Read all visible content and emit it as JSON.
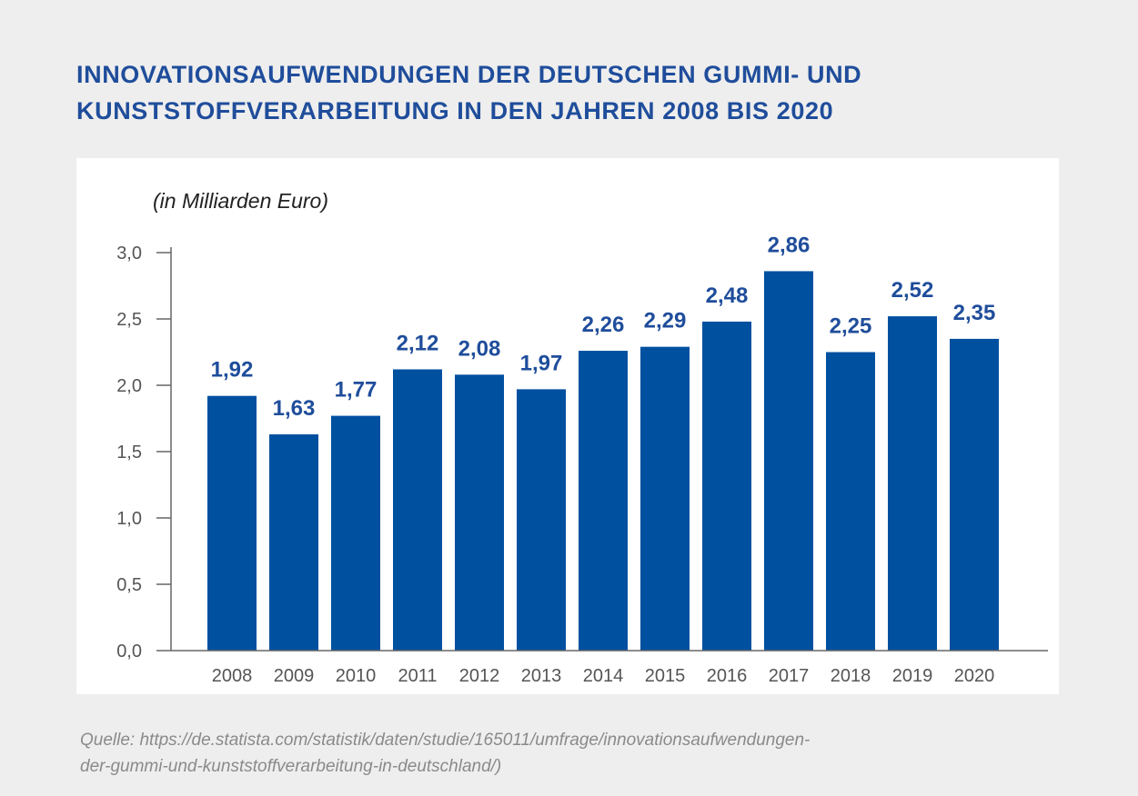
{
  "title_lines": [
    "INNOVATIONSAUFWENDUNGEN DER DEUTSCHEN GUMMI- UND",
    "KUNSTSTOFFVERARBEITUNG IN DEN JAHREN 2008 BIS 2020"
  ],
  "source_lines": [
    "Quelle: https://de.statista.com/statistik/daten/studie/165011/umfrage/innovationsaufwendungen-",
    "der-gummi-und-kunststoffverarbeitung-in-deutschland/)"
  ],
  "chart_data": {
    "type": "bar",
    "title": "INNOVATIONSAUFWENDUNGEN DER DEUTSCHEN GUMMI- UND KUNSTSTOFFVERARBEITUNG IN DEN JAHREN 2008 BIS 2020",
    "unit_label": "(in Milliarden Euro)",
    "xlabel": "",
    "ylabel": "",
    "categories": [
      "2008",
      "2009",
      "2010",
      "2011",
      "2012",
      "2013",
      "2014",
      "2015",
      "2016",
      "2017",
      "2018",
      "2019",
      "2020"
    ],
    "values": [
      1.92,
      1.63,
      1.77,
      2.12,
      2.08,
      1.97,
      2.26,
      2.29,
      2.48,
      2.86,
      2.25,
      2.52,
      2.35
    ],
    "value_labels": [
      "1,92",
      "1,63",
      "1,77",
      "2,12",
      "2,08",
      "1,97",
      "2,26",
      "2,29",
      "2,48",
      "2,86",
      "2,25",
      "2,52",
      "2,35"
    ],
    "yticks": [
      0,
      0.5,
      1.0,
      1.5,
      2.0,
      2.5,
      3.0
    ],
    "ytick_labels": [
      "0,0",
      "0,5",
      "1,0",
      "1,5",
      "2,0",
      "2,5",
      "3,0"
    ],
    "ylim": [
      0,
      3.0
    ],
    "grid": false,
    "legend": "none",
    "colors": {
      "bar": "#0050a0",
      "value_label": "#1f4d9b",
      "axis": "#666666",
      "tick_label": "#555555",
      "title": "#1f4d9b"
    }
  }
}
